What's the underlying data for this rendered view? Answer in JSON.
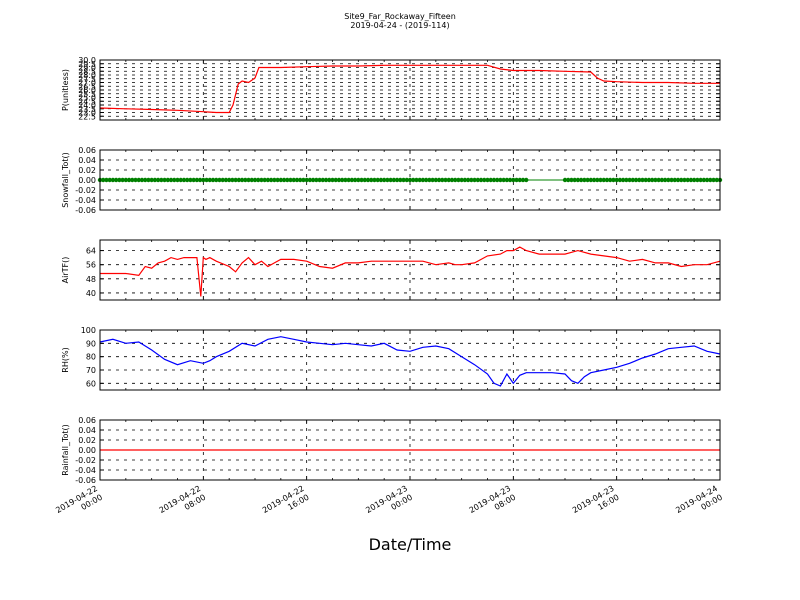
{
  "title": "Site9_Far_Rockaway_Fifteen",
  "subtitle": "2019-04-24 - (2019-114)",
  "xlabel": "Date/Time",
  "x_ticks": [
    {
      "line1": "2019-04-22",
      "line2": "00:00"
    },
    {
      "line1": "2019-04-22",
      "line2": "08:00"
    },
    {
      "line1": "2019-04-22",
      "line2": "16:00"
    },
    {
      "line1": "2019-04-23",
      "line2": "00:00"
    },
    {
      "line1": "2019-04-23",
      "line2": "08:00"
    },
    {
      "line1": "2019-04-23",
      "line2": "16:00"
    },
    {
      "line1": "2019-04-24",
      "line2": "00:00"
    }
  ],
  "chart_data": [
    {
      "type": "line",
      "ylabel": "P(unitless)",
      "ylim": [
        22.0,
        30.0
      ],
      "yticks": [
        "30.0",
        "29.5",
        "29.0",
        "28.5",
        "28.0",
        "27.5",
        "27.0",
        "26.5",
        "26.0",
        "25.5",
        "25.0",
        "24.5",
        "24.0",
        "23.5",
        "23.0",
        "22.5"
      ],
      "ytick_values": [
        30.0,
        29.5,
        29.0,
        28.5,
        28.0,
        27.5,
        27.0,
        26.5,
        26.0,
        25.5,
        25.0,
        24.5,
        24.0,
        23.5,
        23.0,
        22.5
      ],
      "ytick_labels_shown": [
        "30.0",
        "29.5",
        "29.0",
        "28.5",
        "28.0",
        "27.5",
        "27.0",
        "26.5",
        "26.0",
        "25.5",
        "25.0",
        "24.5",
        "24.0",
        "23.5",
        "23.0",
        "22.5"
      ],
      "color": "#ff0000",
      "x_hours": [
        0,
        2,
        4,
        6,
        8,
        8.5,
        9,
        9.5,
        10,
        10.3,
        10.7,
        11,
        11.5,
        12,
        12.3,
        13,
        14,
        16,
        18,
        20,
        22,
        24,
        26,
        28,
        30,
        31,
        32,
        34,
        36,
        38,
        38.5,
        39,
        40,
        42,
        44,
        46,
        48
      ],
      "values": [
        23.6,
        23.5,
        23.4,
        23.3,
        23.1,
        23.05,
        23.0,
        23.0,
        23.0,
        24.0,
        26.8,
        27.2,
        27.0,
        27.6,
        29.0,
        29.0,
        29.0,
        29.1,
        29.2,
        29.2,
        29.3,
        29.3,
        29.3,
        29.3,
        29.3,
        28.8,
        28.6,
        28.6,
        28.5,
        28.4,
        27.6,
        27.2,
        27.1,
        27.0,
        27.0,
        26.9,
        26.9
      ]
    },
    {
      "type": "scatter",
      "ylabel": "Snowfall_Tot()",
      "ylim": [
        -0.06,
        0.06
      ],
      "ytick_labels_shown": [
        "0.06",
        "0.04",
        "0.02",
        "0.00",
        "-0.02",
        "-0.04",
        "-0.06"
      ],
      "ytick_values": [
        0.06,
        0.04,
        0.02,
        0.0,
        -0.02,
        -0.04,
        -0.06
      ],
      "color": "#008000",
      "segments": [
        {
          "from_hour": 0,
          "to_hour": 33,
          "value": 0.0
        },
        {
          "from_hour": 36,
          "to_hour": 48,
          "value": 0.0
        }
      ],
      "line_gap": {
        "from_hour": 33,
        "to_hour": 36,
        "value": 0.0
      }
    },
    {
      "type": "line",
      "ylabel": "AirTF()",
      "ylim": [
        36,
        70
      ],
      "ytick_labels_shown": [
        "64",
        "56",
        "48",
        "40"
      ],
      "ytick_values": [
        64,
        56,
        48,
        40
      ],
      "color": "#ff0000",
      "x_hours": [
        0,
        1,
        2,
        3,
        3.5,
        4,
        4.5,
        5,
        5.5,
        6,
        6.5,
        7,
        7.5,
        7.8,
        8,
        8.2,
        8.5,
        9,
        10,
        10.5,
        11,
        11.5,
        12,
        12.5,
        13,
        13.5,
        14,
        15,
        16,
        17,
        18,
        19,
        20,
        21,
        22,
        23,
        24,
        25,
        26,
        27,
        27.5,
        28,
        29,
        30,
        31,
        31.5,
        32,
        32.5,
        33,
        34,
        35,
        36,
        37,
        38,
        39,
        40,
        41,
        42,
        43,
        44,
        45,
        46,
        47,
        48
      ],
      "values": [
        51,
        51,
        51,
        50,
        55,
        54,
        57,
        58,
        60,
        59,
        60,
        60,
        60,
        38,
        60,
        59,
        60,
        58,
        55,
        52,
        57,
        60,
        56,
        58,
        55,
        57,
        59,
        59,
        58,
        55,
        54,
        57,
        57,
        58,
        58,
        58,
        58,
        58,
        56,
        57,
        56,
        56,
        57,
        61,
        62,
        64,
        64,
        66,
        64,
        62,
        62,
        62,
        64,
        62,
        61,
        60,
        58,
        59,
        57,
        57,
        55,
        56,
        56,
        58
      ]
    },
    {
      "type": "line",
      "ylabel": "RH(%)",
      "ylim": [
        55,
        100
      ],
      "ytick_labels_shown": [
        "100",
        "90",
        "80",
        "70",
        "60"
      ],
      "ytick_values": [
        100,
        90,
        80,
        70,
        60
      ],
      "color": "#0000ff",
      "x_hours": [
        0,
        1,
        2,
        3,
        4,
        5,
        6,
        7,
        8,
        8.5,
        9,
        10,
        11,
        12,
        13,
        14,
        15,
        16,
        17,
        18,
        19,
        20,
        21,
        22,
        23,
        24,
        25,
        26,
        27,
        28,
        29,
        30,
        30.5,
        31,
        31.5,
        32,
        32.5,
        33,
        34,
        35,
        36,
        36.5,
        37,
        37.5,
        38,
        39,
        40,
        41,
        42,
        43,
        44,
        45,
        46,
        47,
        48
      ],
      "values": [
        91,
        93,
        90,
        91,
        85,
        78,
        74,
        77,
        75,
        77,
        80,
        84,
        90,
        88,
        93,
        95,
        93,
        91,
        90,
        89,
        90,
        89,
        88,
        90,
        85,
        84,
        87,
        88,
        86,
        80,
        74,
        67,
        60,
        58,
        67,
        60,
        66,
        68,
        68,
        68,
        67,
        62,
        60,
        65,
        68,
        70,
        72,
        75,
        79,
        82,
        86,
        87,
        88,
        84,
        82
      ]
    },
    {
      "type": "line",
      "ylabel": "Rainfall_Tot()",
      "ylim": [
        -0.06,
        0.06
      ],
      "ytick_labels_shown": [
        "0.06",
        "0.04",
        "0.02",
        "0.00",
        "-0.02",
        "-0.04",
        "-0.06"
      ],
      "ytick_values": [
        0.06,
        0.04,
        0.02,
        0.0,
        -0.02,
        -0.04,
        -0.06
      ],
      "color": "#ff0000",
      "x_hours": [
        0,
        48
      ],
      "values": [
        0.0,
        0.0
      ]
    }
  ]
}
